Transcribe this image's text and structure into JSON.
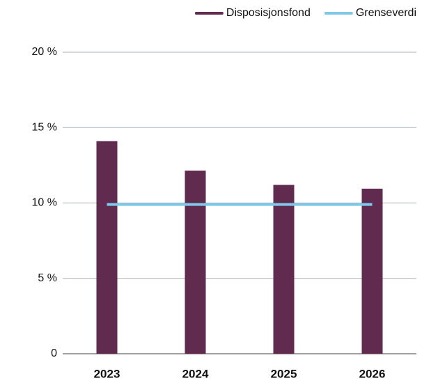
{
  "chart_data": {
    "type": "bar",
    "categories": [
      "2023",
      "2024",
      "2025",
      "2026"
    ],
    "series": [
      {
        "name": "Disposisjonsfond",
        "type": "bar",
        "color": "#612a4f",
        "values": [
          14.1,
          12.15,
          11.2,
          10.95
        ]
      },
      {
        "name": "Grenseverdi",
        "type": "line",
        "color": "#7ec8e8",
        "values": [
          9.9,
          9.9,
          9.9,
          9.9
        ]
      }
    ],
    "ylim": [
      0,
      20
    ],
    "yticks": [
      0,
      {
        "value": 5,
        "label": "5 %"
      },
      {
        "value": 10,
        "label": "10 %"
      },
      {
        "value": 15,
        "label": "15 %"
      },
      {
        "value": 20,
        "label": "20 %"
      }
    ],
    "grid": true,
    "legend": "top-right"
  }
}
